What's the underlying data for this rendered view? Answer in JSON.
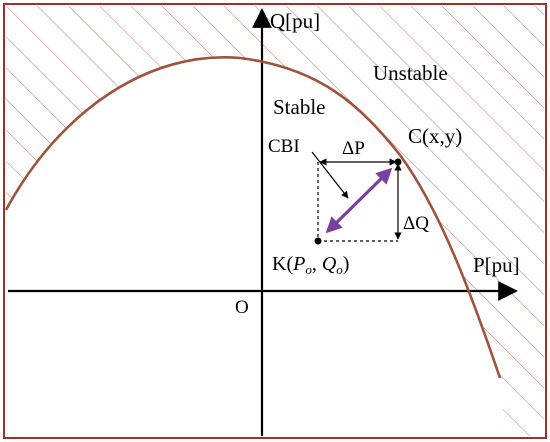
{
  "labels": {
    "q_axis": "Q[pu]",
    "p_axis": "P[pu]",
    "origin": "O",
    "unstable": "Unstable",
    "stable": "Stable",
    "point_c": "C(x,y)",
    "cbi": "CBI",
    "delta_p": "ΔP",
    "delta_q": "ΔQ",
    "point_k_prefix": "K(",
    "point_k_p": "P",
    "point_k_p_sub": "o",
    "point_k_sep": ", ",
    "point_k_q": "Q",
    "point_k_q_sub": "o",
    "point_k_suffix": ")"
  },
  "colors": {
    "frame": "#a0302a",
    "curve": "#a0523a",
    "hatch": "#c9746c",
    "arrow": "#7a3fa0",
    "axis": "#000000"
  }
}
